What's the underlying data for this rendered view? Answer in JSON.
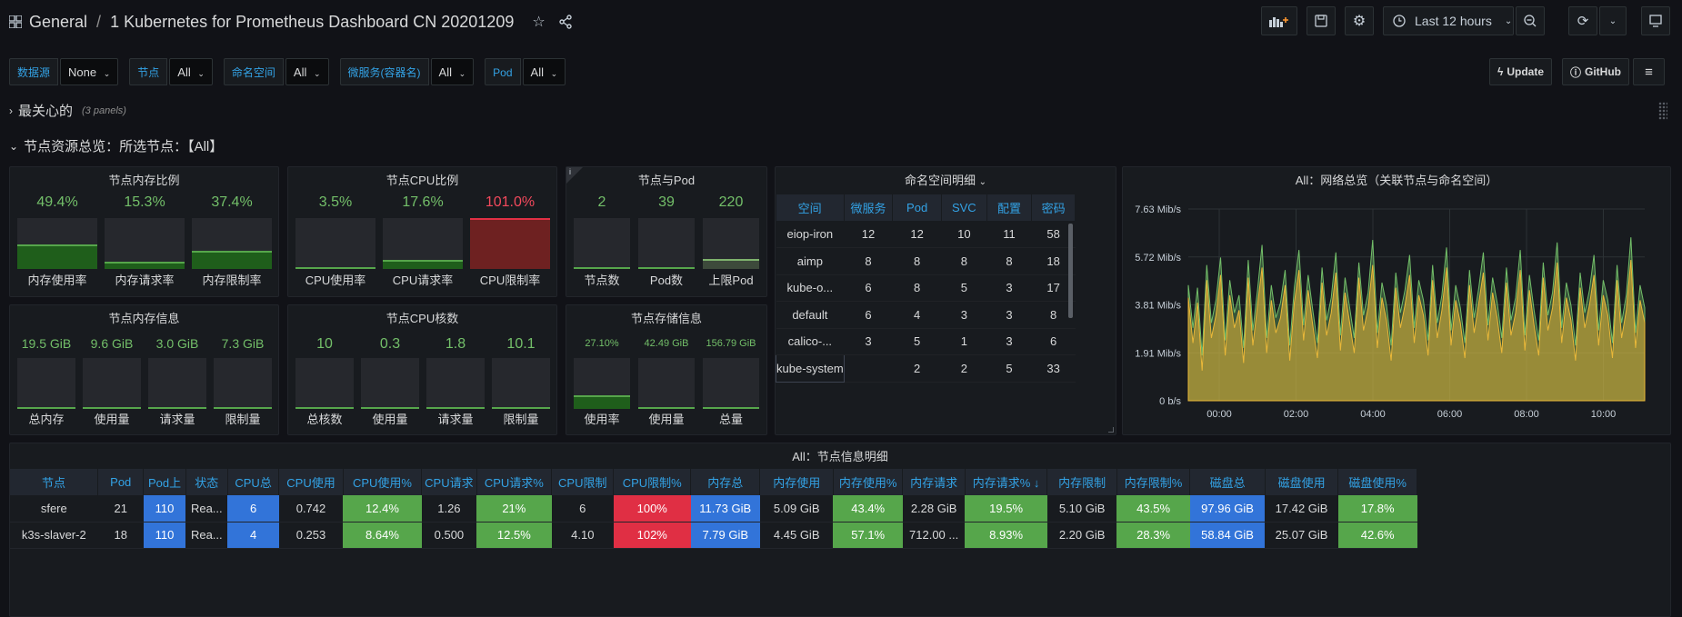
{
  "header": {
    "folder": "General",
    "title": "1 Kubernetes for Prometheus Dashboard CN 20201209",
    "time_range": "Last 12 hours"
  },
  "variables": [
    {
      "label": "数据源",
      "value": "None"
    },
    {
      "label": "节点",
      "value": "All"
    },
    {
      "label": "命名空间",
      "value": "All"
    },
    {
      "label": "微服务(容器名)",
      "value": "All"
    },
    {
      "label": "Pod",
      "value": "All"
    }
  ],
  "links": {
    "update": "Update",
    "github": "GitHub"
  },
  "rows": {
    "row1_title": "最关心的",
    "row1_count": "(3 panels)",
    "row2_title": "节点资源总览：所选节点：【All】"
  },
  "panels": {
    "mem_ratio": {
      "title": "节点内存比例",
      "items": [
        {
          "value": "49.4%",
          "label": "内存使用率",
          "level": 0.494
        },
        {
          "value": "15.3%",
          "label": "内存请求率",
          "level": 0.153
        },
        {
          "value": "37.4%",
          "label": "内存限制率",
          "level": 0.374
        }
      ]
    },
    "cpu_ratio": {
      "title": "节点CPU比例",
      "items": [
        {
          "value": "3.5%",
          "label": "CPU使用率",
          "level": 0.035
        },
        {
          "value": "17.6%",
          "label": "CPU请求率",
          "level": 0.176
        },
        {
          "value": "101.0%",
          "label": "CPU限制率",
          "level": 1.0
        }
      ]
    },
    "node_pod": {
      "title": "节点与Pod",
      "items": [
        {
          "value": "2",
          "label": "节点数",
          "level": 0.02
        },
        {
          "value": "39",
          "label": "Pod数",
          "level": 0.02
        },
        {
          "value": "220",
          "label": "上限Pod",
          "level": 0.2
        }
      ]
    },
    "mem_info": {
      "title": "节点内存信息",
      "items": [
        {
          "value": "19.5 GiB",
          "label": "总内存"
        },
        {
          "value": "9.6 GiB",
          "label": "使用量"
        },
        {
          "value": "3.0 GiB",
          "label": "请求量"
        },
        {
          "value": "7.3 GiB",
          "label": "限制量"
        }
      ]
    },
    "cpu_cores": {
      "title": "节点CPU核数",
      "items": [
        {
          "value": "10",
          "label": "总核数"
        },
        {
          "value": "0.3",
          "label": "使用量"
        },
        {
          "value": "1.8",
          "label": "请求量"
        },
        {
          "value": "10.1",
          "label": "限制量"
        }
      ]
    },
    "storage": {
      "title": "节点存储信息",
      "items": [
        {
          "value": "27.10%",
          "label": "使用率",
          "level": 0.271
        },
        {
          "value": "42.49 GiB",
          "label": "使用量",
          "level": 0.02
        },
        {
          "value": "156.79 GiB",
          "label": "总量",
          "level": 0.02
        }
      ]
    },
    "namespace": {
      "title": "命名空间明细",
      "headers": [
        "空间",
        "微服务",
        "Pod",
        "SVC",
        "配置",
        "密码"
      ],
      "rows": [
        [
          "eiop-iron",
          "12",
          "12",
          "10",
          "11",
          "58"
        ],
        [
          "aimp",
          "8",
          "8",
          "8",
          "8",
          "18"
        ],
        [
          "kube-o...",
          "6",
          "8",
          "5",
          "3",
          "17"
        ],
        [
          "default",
          "6",
          "4",
          "3",
          "3",
          "8"
        ],
        [
          "calico-...",
          "3",
          "5",
          "1",
          "3",
          "6"
        ],
        [
          "kube-system",
          "",
          "2",
          "2",
          "5",
          "33"
        ]
      ]
    },
    "network": {
      "title": "All：网络总览（关联节点与命名空间）"
    },
    "detail": {
      "title": "All：节点信息明细",
      "headers": [
        "节点",
        "Pod",
        "Pod上",
        "状态",
        "CPU总",
        "CPU使用",
        "CPU使用%",
        "CPU请求",
        "CPU请求%",
        "CPU限制",
        "CPU限制%",
        "内存总",
        "内存使用",
        "内存使用%",
        "内存请求",
        "内存请求% ↓",
        "内存限制",
        "内存限制%",
        "磁盘总",
        "磁盘使用",
        "磁盘使用%"
      ],
      "rows": [
        [
          "sfere",
          "21",
          "110",
          "Rea...",
          "6",
          "0.742",
          "12.4%",
          "1.26",
          "21%",
          "6",
          "100%",
          "11.73 GiB",
          "5.09 GiB",
          "43.4%",
          "2.28 GiB",
          "19.5%",
          "5.10 GiB",
          "43.5%",
          "97.96 GiB",
          "17.42 GiB",
          "17.8%"
        ],
        [
          "k3s-slaver-2",
          "18",
          "110",
          "Rea...",
          "4",
          "0.253",
          "8.64%",
          "0.500",
          "12.5%",
          "4.10",
          "102%",
          "7.79 GiB",
          "4.45 GiB",
          "57.1%",
          "712.00 ...",
          "8.93%",
          "2.20 GiB",
          "28.3%",
          "58.84 GiB",
          "25.07 GiB",
          "42.6%"
        ]
      ]
    }
  },
  "chart_data": {
    "type": "area",
    "title": "All：网络总览（关联节点与命名空间）",
    "y_ticks": [
      "0 b/s",
      "1.91 Mib/s",
      "3.81 Mib/s",
      "5.72 Mib/s",
      "7.63 Mib/s"
    ],
    "x_ticks": [
      "00:00",
      "02:00",
      "04:00",
      "06:00",
      "08:00",
      "10:00"
    ],
    "ylim": [
      0,
      7.63
    ],
    "y_unit": "Mib/s",
    "series": [
      {
        "color": "#eab839",
        "values": [
          4.1,
          2.3,
          3.9,
          1.2,
          4.8,
          2.5,
          3.4,
          5.0,
          1.8,
          4.2,
          2.9,
          3.6,
          1.5,
          4.9,
          2.2,
          3.8,
          5.3,
          1.9,
          4.0,
          2.7,
          3.3,
          4.6,
          1.6,
          3.9,
          5.2,
          2.4,
          4.4,
          3.0,
          1.7,
          4.7,
          2.6,
          3.5,
          5.1,
          2.0,
          4.3,
          3.1,
          1.9,
          4.9,
          2.8,
          3.7,
          5.4,
          2.1,
          4.1,
          3.2,
          1.6,
          4.5,
          2.9,
          3.8,
          5.0,
          2.3,
          4.2,
          3.4,
          1.8,
          4.8,
          2.5,
          3.6,
          5.3,
          2.2,
          4.0,
          3.1,
          1.7,
          4.6,
          2.7,
          3.9,
          5.1,
          2.4,
          4.3,
          3.3,
          1.9,
          4.7,
          2.6,
          3.5,
          5.2,
          2.0,
          4.4,
          3.0,
          1.8,
          4.9,
          2.8,
          3.7,
          5.5,
          2.3,
          4.1,
          3.2,
          1.6,
          4.5,
          2.9,
          3.8,
          5.0,
          2.2,
          4.2,
          3.4,
          1.7,
          4.8,
          2.5,
          3.6,
          5.6,
          2.1,
          4.0,
          3.1
        ]
      },
      {
        "color": "#73bf69",
        "values": [
          4.6,
          2.9,
          4.5,
          1.8,
          5.4,
          3.1,
          4.0,
          5.7,
          2.4,
          4.8,
          3.5,
          4.2,
          2.1,
          5.6,
          2.8,
          4.4,
          6.2,
          2.5,
          4.6,
          3.3,
          3.9,
          5.2,
          2.2,
          4.5,
          6.0,
          3.0,
          5.0,
          3.6,
          2.3,
          5.3,
          3.2,
          4.1,
          5.9,
          2.6,
          4.9,
          3.7,
          2.5,
          5.5,
          3.4,
          4.3,
          6.4,
          2.7,
          4.7,
          3.8,
          2.2,
          5.1,
          3.5,
          4.4,
          5.8,
          2.9,
          4.8,
          4.0,
          2.4,
          5.4,
          3.1,
          4.2,
          6.1,
          2.8,
          4.6,
          3.7,
          2.3,
          5.2,
          3.3,
          4.5,
          5.9,
          3.0,
          4.9,
          3.9,
          2.5,
          5.3,
          3.2,
          4.1,
          6.0,
          2.6,
          5.0,
          3.6,
          2.4,
          5.5,
          3.4,
          4.3,
          6.3,
          2.9,
          4.7,
          3.8,
          2.2,
          5.1,
          3.5,
          4.4,
          5.8,
          2.8,
          4.8,
          4.0,
          2.3,
          5.4,
          3.1,
          4.2,
          6.5,
          2.7,
          4.6,
          3.7
        ]
      }
    ]
  }
}
